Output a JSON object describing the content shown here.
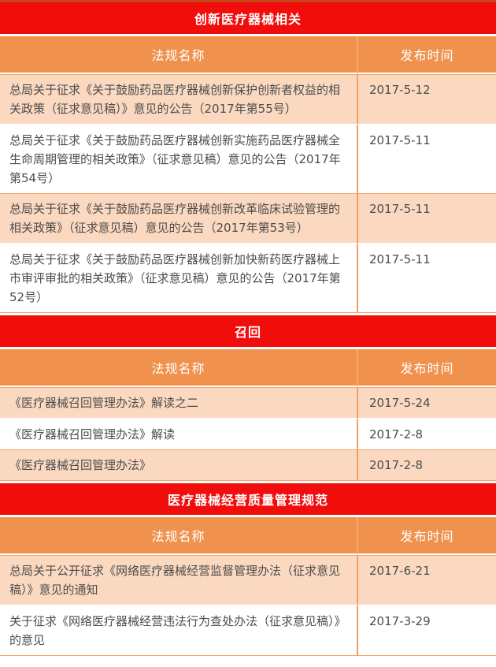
{
  "colors": {
    "section_header_red": "#f20d0d",
    "column_header_orange": "#f0924d",
    "row_peach": "#fbd9c0",
    "row_white": "#ffffff",
    "divider_orange": "#f2a063",
    "text_gray": "#4c4c4c",
    "top_strip": "#c8441c"
  },
  "sections": [
    {
      "title": "创新医疗器械相关",
      "columns": [
        "法规名称",
        "发布时间"
      ],
      "rows": [
        {
          "name": "总局关于征求《关于鼓励药品医疗器械创新保护创新者权益的相关政策（征求意见稿）》意见的公告（2017年第55号）",
          "date": "2017-5-12"
        },
        {
          "name": "总局关于征求《关于鼓励药品医疗器械创新实施药品医疗器械全生命周期管理的相关政策》（征求意见稿）意见的公告（2017年第54号）",
          "date": "2017-5-11"
        },
        {
          "name": "总局关于征求《关于鼓励药品医疗器械创新改革临床试验管理的相关政策》（征求意见稿）意见的公告（2017年第53号）",
          "date": "2017-5-11"
        },
        {
          "name": "总局关于征求《关于鼓励药品医疗器械创新加快新药医疗器械上市审评审批的相关政策》（征求意见稿）意见的公告（2017年第52号）",
          "date": "2017-5-11"
        }
      ]
    },
    {
      "title": "召回",
      "columns": [
        "法规名称",
        "发布时间"
      ],
      "rows": [
        {
          "name": "《医疗器械召回管理办法》解读之二",
          "date": "2017-5-24"
        },
        {
          "name": "《医疗器械召回管理办法》解读",
          "date": "2017-2-8"
        },
        {
          "name": "《医疗器械召回管理办法》",
          "date": "2017-2-8"
        }
      ]
    },
    {
      "title": "医疗器械经营质量管理规范",
      "columns": [
        "法规名称",
        "发布时间"
      ],
      "rows": [
        {
          "name": "总局关于公开征求《网络医疗器械经营监督管理办法（征求意见稿）》意见的通知",
          "date": "2017-6-21"
        },
        {
          "name": "关于征求《网络医疗器械经营违法行为查处办法（征求意见稿）》的意见",
          "date": "2017-3-29"
        }
      ]
    }
  ]
}
